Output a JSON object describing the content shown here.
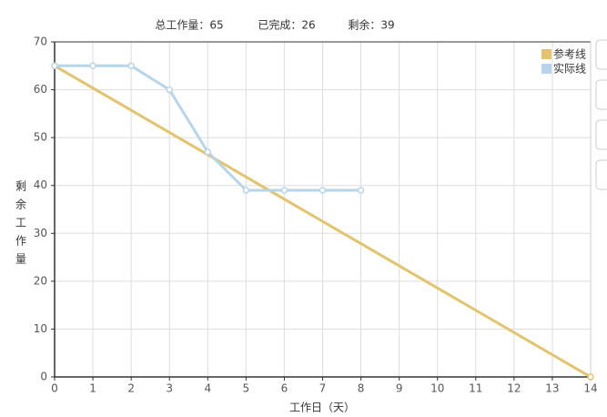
{
  "chart_data": {
    "type": "line",
    "title_parts": [
      "总工作量：65",
      "已完成：26",
      "剩余：39"
    ],
    "x_label": "工作日（天）",
    "y_label": "剩余工作量",
    "series": [
      {
        "name": "参考线",
        "color": "#e3c46c",
        "x": [
          0,
          14
        ],
        "values": [
          65,
          0
        ]
      },
      {
        "name": "实际线",
        "color": "#b7d5ea",
        "x": [
          0,
          1,
          2,
          3,
          4,
          5,
          6,
          7,
          8
        ],
        "values": [
          65,
          65,
          65,
          60,
          47,
          39,
          39,
          39,
          39
        ]
      }
    ],
    "xlim": [
      0,
      14
    ],
    "xticks": [
      0,
      1,
      2,
      3,
      4,
      5,
      6,
      7,
      8,
      9,
      10,
      11,
      12,
      13,
      14
    ],
    "ylim": [
      0,
      70
    ],
    "yticks": [
      0,
      10,
      20,
      30,
      40,
      50,
      60,
      70
    ],
    "grid": true,
    "legend": "top-right"
  }
}
